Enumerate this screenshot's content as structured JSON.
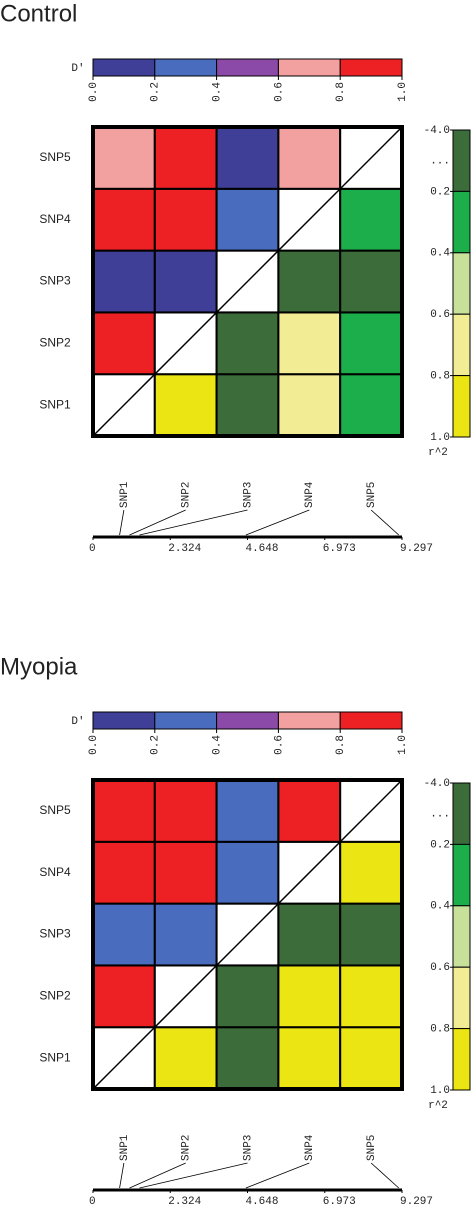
{
  "chart_data": [
    {
      "type": "heatmap",
      "title": "Control",
      "snps": [
        "SNP1",
        "SNP2",
        "SNP3",
        "SNP4",
        "SNP5"
      ],
      "dprime": [
        [
          null,
          null,
          null,
          null,
          null
        ],
        [
          0.9,
          null,
          null,
          null,
          null
        ],
        [
          0.1,
          0.1,
          null,
          null,
          null
        ],
        [
          0.9,
          0.9,
          0.3,
          null,
          null
        ],
        [
          0.7,
          0.9,
          0.1,
          0.7,
          null
        ]
      ],
      "r2": [
        [
          null,
          0.9,
          0.1,
          0.7,
          0.3
        ],
        [
          null,
          null,
          0.1,
          0.7,
          0.3
        ],
        [
          null,
          null,
          null,
          0.1,
          0.1
        ],
        [
          null,
          null,
          null,
          null,
          0.3
        ],
        [
          null,
          null,
          null,
          null,
          null
        ]
      ],
      "dprime_scale": {
        "label": "D'",
        "ticks": [
          {
            "value": 0,
            "label": "0.0"
          },
          0.2,
          0.4,
          0.6,
          0.8,
          {
            "value": 1,
            "label": "1.0"
          }
        ],
        "colors": [
          "#3f3f98",
          "#4a6cbf",
          "#8b4aa8",
          "#f2a1a0",
          "#ed2124"
        ]
      },
      "r2_scale": {
        "label": "r^2",
        "ticks": [
          {
            "value": -4,
            "label": "-4.0"
          },
          "...",
          0.2,
          0.4,
          0.6,
          0.8,
          {
            "value": 1,
            "label": "1.0"
          }
        ],
        "colors": [
          "#3c6c3a",
          "#1bae4b",
          "#c7e19b",
          "#f2ec95",
          "#ebe514"
        ]
      },
      "positions": [
        0.8,
        1.1,
        1.4,
        4.6,
        9.2
      ],
      "xlim": [
        0,
        9.297
      ],
      "xticks": [
        0,
        2.324,
        4.648,
        6.973,
        9.297
      ]
    },
    {
      "type": "heatmap",
      "title": "Myopia",
      "snps": [
        "SNP1",
        "SNP2",
        "SNP3",
        "SNP4",
        "SNP5"
      ],
      "dprime": [
        [
          null,
          null,
          null,
          null,
          null
        ],
        [
          0.9,
          null,
          null,
          null,
          null
        ],
        [
          0.3,
          0.3,
          null,
          null,
          null
        ],
        [
          0.9,
          0.9,
          0.3,
          null,
          null
        ],
        [
          0.9,
          0.9,
          0.3,
          0.9,
          null
        ]
      ],
      "r2": [
        [
          null,
          0.9,
          0.1,
          0.9,
          0.9
        ],
        [
          null,
          null,
          0.1,
          0.9,
          0.9
        ],
        [
          null,
          null,
          null,
          0.1,
          0.1
        ],
        [
          null,
          null,
          null,
          null,
          0.9
        ],
        [
          null,
          null,
          null,
          null,
          null
        ]
      ],
      "dprime_scale": {
        "label": "D'",
        "ticks": [
          {
            "value": 0,
            "label": "0.0"
          },
          0.2,
          0.4,
          0.6,
          0.8,
          {
            "value": 1,
            "label": "1.0"
          }
        ],
        "colors": [
          "#3f3f98",
          "#4a6cbf",
          "#8b4aa8",
          "#f2a1a0",
          "#ed2124"
        ]
      },
      "r2_scale": {
        "label": "r^2",
        "ticks": [
          {
            "value": -4,
            "label": "-4.0"
          },
          "...",
          0.2,
          0.4,
          0.6,
          0.8,
          {
            "value": 1,
            "label": "1.0"
          }
        ],
        "colors": [
          "#3c6c3a",
          "#1bae4b",
          "#c7e19b",
          "#f2ec95",
          "#ebe514"
        ]
      },
      "positions": [
        0.8,
        1.1,
        1.4,
        4.6,
        9.2
      ],
      "xlim": [
        0,
        9.297
      ],
      "xticks": [
        0,
        2.324,
        4.648,
        6.973,
        9.297
      ]
    }
  ]
}
